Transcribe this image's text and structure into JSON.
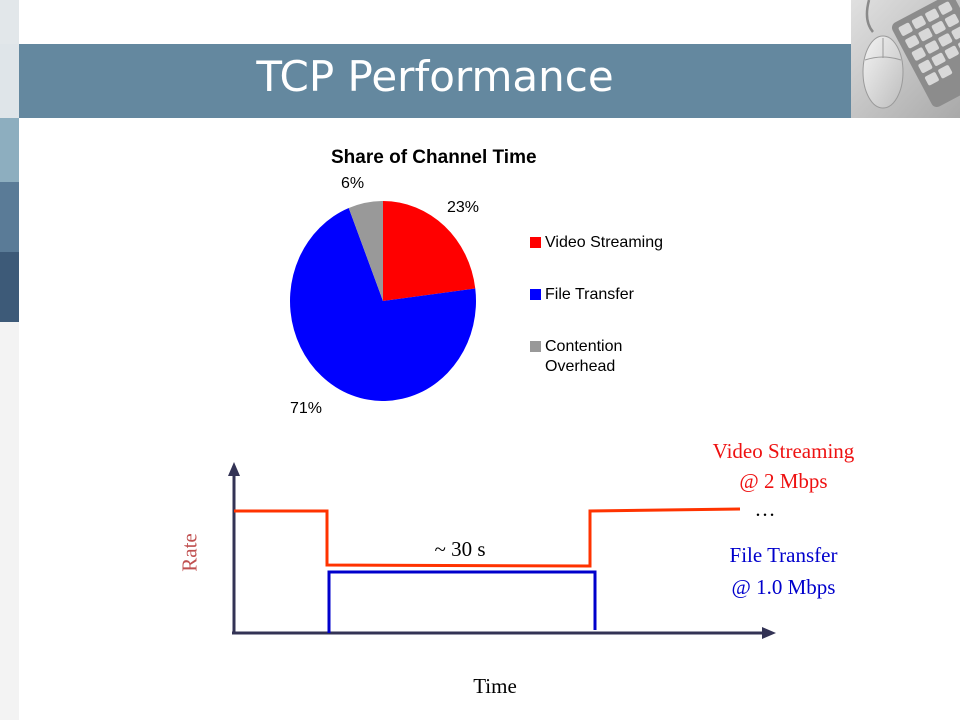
{
  "slide": {
    "title": "TCP Performance",
    "accent_colors": [
      "#64889f",
      "#8daebf",
      "#5a7b97",
      "#3d5a78",
      "#e2e7ea"
    ]
  },
  "chart_data": [
    {
      "type": "pie",
      "title": "Share of Channel Time",
      "slices": [
        {
          "label": "Video Streaming",
          "value": 23,
          "display": "23%",
          "color": "#ff0000"
        },
        {
          "label": "File Transfer",
          "value": 71,
          "display": "71%",
          "color": "#0000ff"
        },
        {
          "label": "Contention\nOverhead",
          "value": 6,
          "display": "6%",
          "color": "#999999"
        }
      ],
      "legend_placement": "right"
    },
    {
      "type": "line",
      "xlabel": "Time",
      "ylabel": "Rate",
      "annotation_interval": "~ 30 s",
      "series": [
        {
          "name": "Video Streaming",
          "label_lines": [
            "Video Streaming",
            "@ 2 Mbps"
          ],
          "continuation": "…",
          "color": "#ff3300"
        },
        {
          "name": "File Transfer",
          "label_lines": [
            "File Transfer",
            "@ 1.0 Mbps"
          ],
          "color": "#0000cc"
        }
      ]
    }
  ]
}
